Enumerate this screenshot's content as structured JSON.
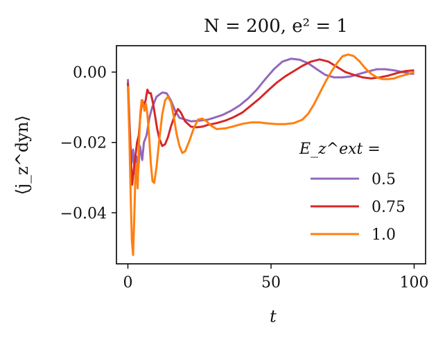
{
  "chart_data": {
    "type": "line",
    "title": "N = 200, e² = 1",
    "xlabel": "t",
    "ylabel": "⟨j_z^dyn⟩",
    "xlim": [
      -4,
      104
    ],
    "ylim": [
      -0.0545,
      0.0075
    ],
    "xticks": [
      0,
      50,
      100
    ],
    "xtick_labels": [
      "0",
      "50",
      "100"
    ],
    "yticks": [
      0.0,
      -0.02,
      -0.04
    ],
    "ytick_labels": [
      "0.00",
      "−0.02",
      "−0.04"
    ],
    "grid": false,
    "legend": {
      "title": "E_z^ext =",
      "placement": "lower-right"
    },
    "series": [
      {
        "name": "0.5",
        "color": "#9467bd",
        "points": [
          [
            0,
            -0.002
          ],
          [
            0.6,
            -0.015
          ],
          [
            1.2,
            -0.026
          ],
          [
            1.8,
            -0.022
          ],
          [
            2.4,
            -0.029
          ],
          [
            3,
            -0.024
          ],
          [
            3.6,
            -0.028
          ],
          [
            4.2,
            -0.021
          ],
          [
            5,
            -0.025
          ],
          [
            5.6,
            -0.02
          ],
          [
            6.5,
            -0.018
          ],
          [
            7.5,
            -0.013
          ],
          [
            8.5,
            -0.01
          ],
          [
            10,
            -0.007
          ],
          [
            12,
            -0.0058
          ],
          [
            13.5,
            -0.006
          ],
          [
            15,
            -0.008
          ],
          [
            16.5,
            -0.011
          ],
          [
            18,
            -0.013
          ],
          [
            20,
            -0.0135
          ],
          [
            22,
            -0.014
          ],
          [
            25,
            -0.0138
          ],
          [
            28,
            -0.0135
          ],
          [
            30,
            -0.013
          ],
          [
            33,
            -0.0122
          ],
          [
            36,
            -0.011
          ],
          [
            39,
            -0.0095
          ],
          [
            42,
            -0.0075
          ],
          [
            45,
            -0.005
          ],
          [
            48,
            -0.002
          ],
          [
            51,
            0.0008
          ],
          [
            54,
            0.003
          ],
          [
            57,
            0.0038
          ],
          [
            60,
            0.0035
          ],
          [
            63,
            0.0025
          ],
          [
            66,
            0.0008
          ],
          [
            69,
            -0.0008
          ],
          [
            72,
            -0.0015
          ],
          [
            75,
            -0.0015
          ],
          [
            78,
            -0.0012
          ],
          [
            81,
            -0.0005
          ],
          [
            84,
            0.0002
          ],
          [
            87,
            0.0008
          ],
          [
            90,
            0.0008
          ],
          [
            93,
            0.0005
          ],
          [
            96,
            0.0
          ],
          [
            99,
            -0.0005
          ],
          [
            100,
            -0.0005
          ]
        ]
      },
      {
        "name": "0.75",
        "color": "#d62728",
        "points": [
          [
            0,
            -0.003
          ],
          [
            0.5,
            -0.015
          ],
          [
            1,
            -0.024
          ],
          [
            1.5,
            -0.032
          ],
          [
            2,
            -0.028
          ],
          [
            2.6,
            -0.024
          ],
          [
            3.2,
            -0.02
          ],
          [
            3.8,
            -0.018
          ],
          [
            4.4,
            -0.012
          ],
          [
            5,
            -0.008
          ],
          [
            5.6,
            -0.0095
          ],
          [
            6.2,
            -0.008
          ],
          [
            6.8,
            -0.005
          ],
          [
            7.4,
            -0.006
          ],
          [
            8,
            -0.006
          ],
          [
            8.8,
            -0.009
          ],
          [
            9.5,
            -0.0125
          ],
          [
            10.2,
            -0.016
          ],
          [
            11,
            -0.019
          ],
          [
            12,
            -0.021
          ],
          [
            13,
            -0.0205
          ],
          [
            14,
            -0.0185
          ],
          [
            15,
            -0.0155
          ],
          [
            16.5,
            -0.012
          ],
          [
            17.5,
            -0.0105
          ],
          [
            18.5,
            -0.0115
          ],
          [
            20,
            -0.014
          ],
          [
            22,
            -0.0155
          ],
          [
            24,
            -0.0157
          ],
          [
            26,
            -0.0155
          ],
          [
            28,
            -0.015
          ],
          [
            31,
            -0.0145
          ],
          [
            34,
            -0.0138
          ],
          [
            37,
            -0.0128
          ],
          [
            40,
            -0.0115
          ],
          [
            43,
            -0.0095
          ],
          [
            46,
            -0.0075
          ],
          [
            49,
            -0.0052
          ],
          [
            52,
            -0.003
          ],
          [
            55,
            -0.0012
          ],
          [
            58,
            0.0003
          ],
          [
            61,
            0.0018
          ],
          [
            64,
            0.003
          ],
          [
            67,
            0.0036
          ],
          [
            70,
            0.003
          ],
          [
            73,
            0.0015
          ],
          [
            76,
            0.0
          ],
          [
            79,
            -0.0008
          ],
          [
            82,
            -0.0015
          ],
          [
            85,
            -0.0018
          ],
          [
            88,
            -0.0015
          ],
          [
            91,
            -0.001
          ],
          [
            94,
            -0.0003
          ],
          [
            97,
            0.0003
          ],
          [
            100,
            0.0005
          ]
        ]
      },
      {
        "name": "1.0",
        "color": "#ff7f0e",
        "points": [
          [
            0,
            -0.004
          ],
          [
            0.5,
            -0.018
          ],
          [
            1,
            -0.036
          ],
          [
            1.4,
            -0.048
          ],
          [
            1.8,
            -0.052
          ],
          [
            2.2,
            -0.042
          ],
          [
            2.6,
            -0.03
          ],
          [
            3,
            -0.026
          ],
          [
            3.4,
            -0.033
          ],
          [
            3.8,
            -0.022
          ],
          [
            4.3,
            -0.012
          ],
          [
            4.8,
            -0.008
          ],
          [
            5.3,
            -0.009
          ],
          [
            5.8,
            -0.011
          ],
          [
            6.3,
            -0.009
          ],
          [
            6.8,
            -0.012
          ],
          [
            7.4,
            -0.018
          ],
          [
            8,
            -0.026
          ],
          [
            8.6,
            -0.031
          ],
          [
            9.2,
            -0.0315
          ],
          [
            10,
            -0.027
          ],
          [
            11,
            -0.019
          ],
          [
            12,
            -0.012
          ],
          [
            13,
            -0.008
          ],
          [
            14,
            -0.007
          ],
          [
            15,
            -0.0085
          ],
          [
            16,
            -0.0125
          ],
          [
            17,
            -0.0175
          ],
          [
            18,
            -0.021
          ],
          [
            19,
            -0.023
          ],
          [
            20,
            -0.0225
          ],
          [
            21.5,
            -0.0195
          ],
          [
            23,
            -0.016
          ],
          [
            24.5,
            -0.0135
          ],
          [
            26,
            -0.0132
          ],
          [
            27.5,
            -0.014
          ],
          [
            29,
            -0.0152
          ],
          [
            31,
            -0.0162
          ],
          [
            34,
            -0.016
          ],
          [
            37,
            -0.0154
          ],
          [
            40,
            -0.0147
          ],
          [
            43,
            -0.0143
          ],
          [
            46,
            -0.0143
          ],
          [
            49,
            -0.0146
          ],
          [
            52,
            -0.0148
          ],
          [
            55,
            -0.0148
          ],
          [
            58,
            -0.0145
          ],
          [
            61,
            -0.0135
          ],
          [
            63,
            -0.0118
          ],
          [
            65,
            -0.0092
          ],
          [
            67,
            -0.006
          ],
          [
            69,
            -0.0028
          ],
          [
            71,
            0.0
          ],
          [
            73,
            0.0025
          ],
          [
            75,
            0.0045
          ],
          [
            77,
            0.005
          ],
          [
            79,
            0.0045
          ],
          [
            81,
            0.003
          ],
          [
            83,
            0.001
          ],
          [
            85,
            -0.0005
          ],
          [
            87,
            -0.0015
          ],
          [
            89,
            -0.002
          ],
          [
            91,
            -0.002
          ],
          [
            93,
            -0.0018
          ],
          [
            95,
            -0.0012
          ],
          [
            97,
            -0.0008
          ],
          [
            99,
            -0.0003
          ],
          [
            100,
            0.0
          ]
        ]
      }
    ]
  }
}
